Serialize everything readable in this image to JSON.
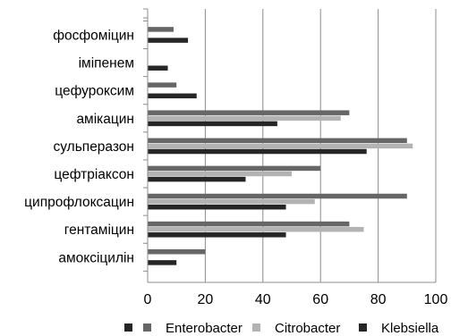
{
  "chart_data": {
    "type": "bar",
    "orientation": "horizontal",
    "categories": [
      "фосфоміцин",
      "іміпенем",
      "цефуроксим",
      "амікацин",
      "сульперазон",
      "цефтріаксон",
      "ципрофлоксацин",
      "гентаміцин",
      "амоксіцилін"
    ],
    "series": [
      {
        "name": "Enterobacter",
        "color": "#666666",
        "values": [
          9,
          0,
          10,
          70,
          90,
          60,
          90,
          70,
          20
        ]
      },
      {
        "name": "Citrobacter",
        "color": "#b3b3b3",
        "values": [
          0,
          0,
          0,
          67,
          92,
          50,
          58,
          75,
          0
        ]
      },
      {
        "name": "Klebsiella",
        "color": "#262626",
        "values": [
          14,
          7,
          17,
          45,
          76,
          34,
          48,
          48,
          10
        ]
      }
    ],
    "xlim": [
      0,
      100
    ],
    "xticks": [
      0,
      20,
      40,
      60,
      80,
      100
    ],
    "title": "",
    "xlabel": "",
    "ylabel": "",
    "grid": "vertical",
    "legend_position": "bottom",
    "legend_marker_color": "#262626"
  }
}
